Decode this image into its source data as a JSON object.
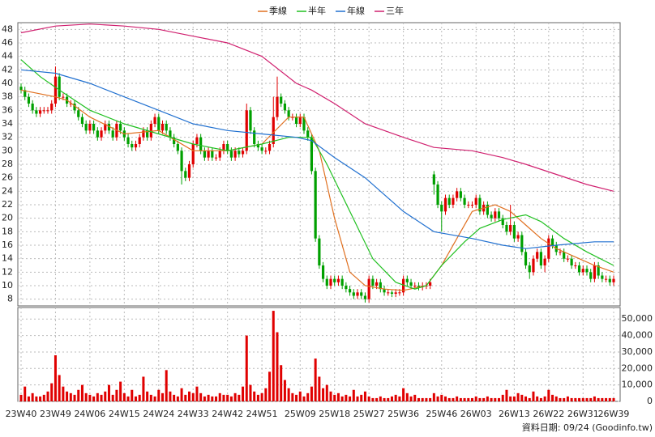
{
  "chart_data": [
    {
      "type": "candlestick",
      "ylim": [
        7,
        49
      ],
      "yticks": [
        8,
        10,
        12,
        14,
        16,
        18,
        20,
        22,
        24,
        26,
        28,
        30,
        32,
        34,
        36,
        38,
        40,
        42,
        44,
        46,
        48
      ],
      "grid": true,
      "legend": "top",
      "up_color": "#e00000",
      "down_color": "#00a000",
      "open": [
        39.5,
        39,
        38,
        37,
        36,
        35.5,
        36,
        36,
        36,
        37,
        41,
        38,
        38,
        37,
        37,
        36,
        35,
        34,
        33,
        34,
        33,
        32,
        33,
        34,
        33,
        32,
        34,
        33,
        32,
        31,
        30.5,
        31,
        32,
        33,
        32,
        34,
        35,
        33,
        34,
        33,
        32,
        31,
        30,
        27,
        26,
        28,
        31,
        32,
        30,
        29,
        30,
        29,
        29,
        30,
        31,
        30,
        29,
        30,
        29.5,
        30,
        36,
        33,
        31,
        30.5,
        30,
        30,
        31,
        35,
        38,
        37,
        36,
        35,
        35,
        34,
        35,
        33,
        32,
        27,
        17,
        13,
        11,
        10,
        11,
        10.5,
        11,
        10,
        9.5,
        9,
        8.5,
        9,
        8.5,
        8,
        11,
        10,
        10.5,
        9.5,
        9,
        9,
        8.8,
        9,
        9,
        11,
        10.5,
        10,
        10,
        9.8,
        10,
        10,
        26.5,
        25,
        22,
        21,
        23,
        22,
        23,
        24,
        23,
        22,
        22,
        22,
        23,
        21,
        22,
        20.5,
        20,
        21,
        20,
        19,
        18,
        19,
        17,
        17.5,
        15,
        13,
        12,
        14,
        15,
        13,
        14,
        17,
        16,
        15,
        15,
        14,
        14,
        13,
        13,
        12,
        12.5,
        12,
        11,
        13,
        11.5,
        11,
        11,
        10.5
      ],
      "high": [
        40,
        39.5,
        38.5,
        37.5,
        36.5,
        36.5,
        36.5,
        36.5,
        37.5,
        42.5,
        41.5,
        38.5,
        38.5,
        37.5,
        37.5,
        36.5,
        35.5,
        34.5,
        34.5,
        34.5,
        33.5,
        33.5,
        34.5,
        34.5,
        33.5,
        34.5,
        34.5,
        33.5,
        32.5,
        31.5,
        31.5,
        32.5,
        33.5,
        33.5,
        34.5,
        35.5,
        35.5,
        34.5,
        34.5,
        33.5,
        32.5,
        31.5,
        30.5,
        27.5,
        28.5,
        31.5,
        32.5,
        32.5,
        30.5,
        30.5,
        30.5,
        29.5,
        30.5,
        31.5,
        31.5,
        30.5,
        30.5,
        30.5,
        30.5,
        37,
        36.5,
        33.5,
        31.5,
        31,
        30.5,
        31.5,
        38,
        41,
        38.5,
        37.5,
        36.5,
        35.5,
        35.5,
        35.5,
        35.5,
        33.5,
        32.5,
        27.5,
        17.5,
        13.5,
        11.5,
        11.5,
        11.5,
        11.5,
        11.5,
        10.5,
        10,
        9.5,
        9.5,
        9.5,
        9,
        11.5,
        11.5,
        11,
        11,
        10,
        9.5,
        9.3,
        9.5,
        9.5,
        11.5,
        11.5,
        11,
        10.5,
        10.5,
        10.5,
        10.5,
        11,
        27,
        25.5,
        22.5,
        23.5,
        23.5,
        23.5,
        24.5,
        24.5,
        23.5,
        22.5,
        22.5,
        23.5,
        23.5,
        22.5,
        22.5,
        21,
        21.5,
        21.5,
        20.5,
        19.5,
        22,
        19.5,
        18,
        18,
        15.5,
        13.5,
        14.5,
        15.5,
        15.5,
        14.5,
        17.5,
        17.5,
        16.5,
        15.5,
        15.5,
        14.5,
        14.5,
        13.5,
        13.5,
        13,
        13,
        12.5,
        13.5,
        13.5,
        12,
        11.5,
        11.5,
        11.5
      ],
      "low": [
        38.5,
        37.5,
        36.5,
        35.5,
        35,
        35,
        35.5,
        35.5,
        35.5,
        36.5,
        37.5,
        37.5,
        36.5,
        36.5,
        35.5,
        34.5,
        33.5,
        32.5,
        32.5,
        32.5,
        31.5,
        31.5,
        32.5,
        32.5,
        31.5,
        31.5,
        32.5,
        31.5,
        30.5,
        30,
        30,
        30.5,
        31.5,
        31.5,
        31.5,
        33.5,
        32.5,
        32.5,
        32.5,
        31.5,
        30.5,
        29.5,
        25,
        25.5,
        25.5,
        27.5,
        30.5,
        29.5,
        28.5,
        28.5,
        28.5,
        28.5,
        28.5,
        29.5,
        29.5,
        28.5,
        28.5,
        29,
        29,
        29.5,
        32.5,
        30.5,
        30,
        29.5,
        29.5,
        29.5,
        30.5,
        34.5,
        36.5,
        35.5,
        34.5,
        34.5,
        33.5,
        33.5,
        32.5,
        31.5,
        26.5,
        16.5,
        12.5,
        10.5,
        9.5,
        9.5,
        10,
        10,
        9.5,
        9,
        8.5,
        8,
        8,
        8,
        7.5,
        7.5,
        9.5,
        9.5,
        9,
        8.5,
        8.5,
        8.3,
        8.3,
        8.5,
        8.5,
        10,
        9.5,
        9.5,
        9.3,
        9.3,
        9.5,
        9.5,
        23.5,
        21.5,
        18,
        20.5,
        21.5,
        21.5,
        22.5,
        22.5,
        21.5,
        21.5,
        21.5,
        21.5,
        20.5,
        20.5,
        20,
        19.5,
        19.5,
        19.5,
        18.5,
        17.5,
        17.5,
        16.5,
        16.5,
        14.5,
        12.5,
        11,
        11.5,
        13.5,
        12.5,
        12,
        13.5,
        15.5,
        14.5,
        14.5,
        13.5,
        13.5,
        12.5,
        12.5,
        11.5,
        11.5,
        11.5,
        10.5,
        10.5,
        11,
        10.5,
        10.5,
        10,
        10
      ],
      "close": [
        39,
        38,
        37,
        36,
        35.5,
        36,
        36,
        36,
        37,
        41,
        38,
        38,
        37,
        37,
        36,
        35,
        34,
        33,
        34,
        33,
        32,
        33,
        34,
        33,
        32,
        34,
        33,
        32,
        31,
        30.5,
        31,
        32,
        33,
        32,
        34,
        35,
        33,
        34,
        33,
        32,
        31,
        30,
        27,
        26,
        28,
        31,
        32,
        30,
        29,
        30,
        29,
        29,
        30,
        31,
        30,
        29,
        30,
        29.5,
        30,
        36,
        33,
        31,
        30.5,
        30,
        30,
        31,
        35,
        38,
        37,
        36,
        35,
        35,
        34,
        35,
        33,
        32,
        27,
        17,
        13,
        11,
        10,
        11,
        10.5,
        11,
        10,
        9.5,
        9,
        8.5,
        9,
        8.5,
        8,
        11,
        10,
        10.5,
        9.5,
        9,
        9,
        8.8,
        9,
        9,
        11,
        10.5,
        10,
        10,
        9.8,
        10,
        10,
        10.5,
        25,
        22,
        21,
        23,
        22,
        23,
        24,
        23,
        22,
        22,
        22,
        23,
        21,
        22,
        20.5,
        20,
        21,
        20,
        19,
        18,
        19,
        17,
        17.5,
        15,
        13,
        12,
        14,
        15,
        13,
        14,
        17,
        16,
        15,
        15,
        14,
        14,
        13,
        13,
        12,
        12.5,
        12,
        11,
        13,
        11.5,
        11,
        11,
        10.5,
        11
      ],
      "series": [
        {
          "name": "季線",
          "color": "#e07020",
          "x": [
            0,
            9,
            12,
            18,
            27,
            36,
            45,
            54,
            63,
            70,
            74,
            78,
            82,
            86,
            90,
            95,
            100,
            106,
            110,
            114,
            118,
            124,
            128,
            132,
            136,
            140,
            146,
            150,
            155
          ],
          "values": [
            39,
            38,
            37.5,
            35,
            32.5,
            33,
            30,
            30,
            31,
            35,
            35,
            30,
            20,
            12,
            10,
            9.5,
            9.3,
            10,
            13,
            17,
            21,
            22,
            21,
            19,
            17,
            15.5,
            14,
            13,
            12
          ]
        },
        {
          "name": "半年",
          "color": "#20c020",
          "x": [
            0,
            5,
            10,
            18,
            27,
            36,
            45,
            54,
            63,
            70,
            76,
            80,
            86,
            92,
            98,
            103,
            106,
            110,
            116,
            120,
            126,
            132,
            136,
            142,
            148,
            155
          ],
          "values": [
            43.5,
            41,
            39,
            36,
            34,
            32.5,
            31,
            30,
            31,
            32,
            32,
            28,
            21,
            14,
            10.5,
            9.5,
            10,
            13,
            16.5,
            18.5,
            19.8,
            20.5,
            19.5,
            17,
            15,
            13
          ]
        },
        {
          "name": "年線",
          "color": "#2070d0",
          "x": [
            0,
            9,
            18,
            27,
            36,
            45,
            54,
            63,
            72,
            76,
            82,
            90,
            100,
            108,
            118,
            126,
            132,
            140,
            150,
            155
          ],
          "values": [
            42,
            41.5,
            40,
            38,
            36,
            34,
            33,
            32.5,
            32,
            31.5,
            29,
            26,
            21,
            18,
            17,
            16,
            15.5,
            16,
            16.5,
            16.5
          ]
        },
        {
          "name": "三年",
          "color": "#d0206f",
          "x": [
            0,
            9,
            18,
            27,
            36,
            45,
            54,
            63,
            72,
            76,
            82,
            90,
            100,
            108,
            118,
            126,
            132,
            140,
            148,
            155
          ],
          "values": [
            47.5,
            48.5,
            48.8,
            48.5,
            48,
            47,
            46,
            44,
            40,
            39,
            37,
            34,
            32,
            30.5,
            30,
            29,
            28,
            26.5,
            25,
            24
          ]
        }
      ]
    },
    {
      "type": "bar",
      "color": "#e00000",
      "ylim": [
        0,
        57000
      ],
      "grid": true,
      "yticks": [
        0,
        {
          "value": 10000,
          "label": "10,000"
        },
        {
          "value": 20000,
          "label": "20,000"
        },
        {
          "value": 30000,
          "label": "30,000"
        },
        {
          "value": 40000,
          "label": "40,000"
        },
        {
          "value": 50000,
          "label": "50,000"
        }
      ],
      "categories": [
        "23W40",
        null,
        null,
        null,
        null,
        null,
        null,
        null,
        null,
        "23W49",
        null,
        null,
        null,
        null,
        null,
        null,
        null,
        null,
        "24W06",
        null,
        null,
        null,
        null,
        null,
        null,
        null,
        null,
        "24W15",
        null,
        null,
        null,
        null,
        null,
        null,
        null,
        null,
        "24W24",
        null,
        null,
        null,
        null,
        null,
        null,
        null,
        null,
        "24W33",
        null,
        null,
        null,
        null,
        null,
        null,
        null,
        null,
        "24W42",
        null,
        null,
        null,
        null,
        null,
        null,
        null,
        null,
        "24W51",
        null,
        null,
        null,
        null,
        null,
        null,
        null,
        null,
        null,
        "25W09",
        null,
        null,
        null,
        null,
        null,
        null,
        null,
        null,
        "25W18",
        null,
        null,
        null,
        null,
        null,
        null,
        null,
        null,
        "25W27",
        null,
        null,
        null,
        null,
        null,
        null,
        null,
        null,
        "25W36",
        null,
        null,
        null,
        null,
        null,
        null,
        null,
        null,
        null,
        "25W46",
        null,
        null,
        null,
        null,
        null,
        null,
        null,
        null,
        "26W03",
        null,
        null,
        null,
        null,
        null,
        null,
        null,
        null,
        null,
        "26W13",
        null,
        null,
        null,
        null,
        null,
        null,
        null,
        null,
        "26W22",
        null,
        null,
        null,
        null,
        null,
        null,
        null,
        null,
        "26W31",
        null,
        null,
        null,
        null,
        null,
        null,
        null,
        "26W39"
      ],
      "values": [
        4000,
        9000,
        3000,
        5000,
        3000,
        3000,
        4000,
        6000,
        11000,
        28000,
        16000,
        9000,
        6000,
        5000,
        4000,
        7000,
        10000,
        5000,
        4000,
        3000,
        5000,
        4000,
        6000,
        10000,
        4000,
        7000,
        12000,
        5000,
        3000,
        7000,
        3000,
        4000,
        15000,
        6000,
        4000,
        3000,
        7000,
        5000,
        19000,
        6000,
        4000,
        3000,
        8000,
        4000,
        6000,
        5000,
        9000,
        5000,
        3000,
        4000,
        3000,
        3000,
        5000,
        4000,
        4000,
        3000,
        5000,
        4000,
        9000,
        40000,
        10000,
        6000,
        4000,
        5000,
        8000,
        18000,
        55000,
        42000,
        22000,
        13000,
        8000,
        5000,
        4000,
        6000,
        3000,
        5000,
        9000,
        26000,
        15000,
        8000,
        10000,
        6000,
        4000,
        5000,
        3000,
        4000,
        3000,
        7000,
        3000,
        4000,
        6000,
        3000,
        2000,
        2000,
        3000,
        2000,
        2000,
        3000,
        4000,
        3000,
        8000,
        5000,
        3000,
        4000,
        2000,
        2000,
        2000,
        2000,
        5000,
        3000,
        4000,
        3000,
        2000,
        2000,
        3000,
        2000,
        2000,
        2000,
        2000,
        3000,
        2000,
        2000,
        3000,
        2000,
        2000,
        2000,
        4000,
        7000,
        3000,
        3000,
        5000,
        4000,
        3000,
        2000,
        6000,
        3000,
        2000,
        3000,
        7000,
        4000,
        3000,
        2000,
        2000,
        3000,
        2000,
        2000,
        2000,
        2000,
        2000,
        2000,
        3000,
        2000,
        2000,
        2000,
        2000,
        2000
      ],
      "note": "資料日期: 09/24 (Goodinfo.tw)"
    }
  ]
}
